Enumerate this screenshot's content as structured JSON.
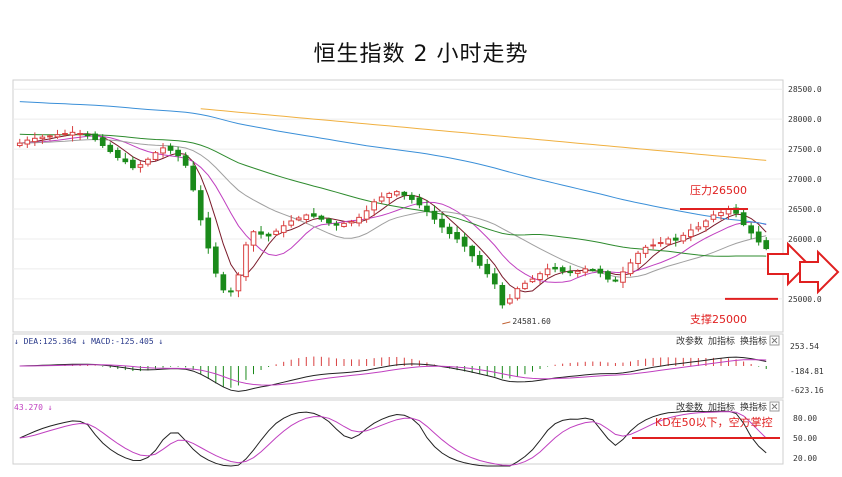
{
  "title": "恒生指数 2 小时走势",
  "chart_data": {
    "type": "candlestick",
    "title": "恒生指数 2 小时走势",
    "main": {
      "yticks": [
        "28500.0",
        "28000.0",
        "27500.0",
        "27000.0",
        "26500.0",
        "26000.0",
        "25500.0",
        "25000.0"
      ],
      "ytick_values": [
        28500,
        28000,
        27500,
        27000,
        26500,
        26000,
        25500,
        25000
      ],
      "ylim": [
        24480,
        28620
      ],
      "closes": [
        27600,
        27650,
        27680,
        27700,
        27720,
        27740,
        27760,
        27780,
        27760,
        27740,
        27660,
        27560,
        27460,
        27360,
        27290,
        27190,
        27240,
        27330,
        27440,
        27520,
        27480,
        27390,
        27230,
        26820,
        26320,
        25850,
        25430,
        25150,
        25120,
        25400,
        25900,
        26120,
        26080,
        26050,
        26130,
        26220,
        26300,
        26350,
        26400,
        26380,
        26330,
        26270,
        26230,
        26260,
        26290,
        26360,
        26470,
        26620,
        26700,
        26760,
        26790,
        26730,
        26660,
        26570,
        26460,
        26330,
        26200,
        26090,
        26000,
        25880,
        25720,
        25560,
        25420,
        25250,
        24900,
        25000,
        25170,
        25260,
        25330,
        25420,
        25500,
        25500,
        25460,
        25450,
        25460,
        25500,
        25480,
        25430,
        25330,
        25300,
        25450,
        25600,
        25760,
        25860,
        25900,
        25940,
        26000,
        25980,
        26060,
        26150,
        26200,
        26300,
        26400,
        26440,
        26500,
        26430,
        26240,
        26100,
        25950,
        25840
      ],
      "annotations": {
        "resistance_label": "压力26500",
        "resistance_value": 26500,
        "support_label": "支撑25000",
        "support_value": 25000,
        "low_label": "24581.60",
        "low_value": 24581.6
      }
    },
    "macd": {
      "header": "↓ DEA:125.364 ↓ MACD:-125.405 ↓",
      "yticks": [
        "253.54",
        "-184.81",
        "-623.16"
      ],
      "buttons": [
        "改参数",
        "加指标",
        "换指标"
      ]
    },
    "kd": {
      "header": "43.270 ↓",
      "yticks": [
        "80.00",
        "50.00",
        "20.00"
      ],
      "buttons": [
        "改参数",
        "加指标",
        "换指标"
      ],
      "annotation": "KD在50以下，空方掌控",
      "annotation_level": 50
    },
    "colors": {
      "up": "#d94040",
      "down": "#1a8a1a",
      "ma_orange": "#f0b040",
      "ma_blue": "#3a8fd8",
      "ma_green": "#2e8b2e",
      "ma_darkred": "#7a1a2a",
      "ma_magenta": "#c040c0",
      "ma_gray": "#a0a0a0",
      "annotation": "#e02020"
    }
  }
}
